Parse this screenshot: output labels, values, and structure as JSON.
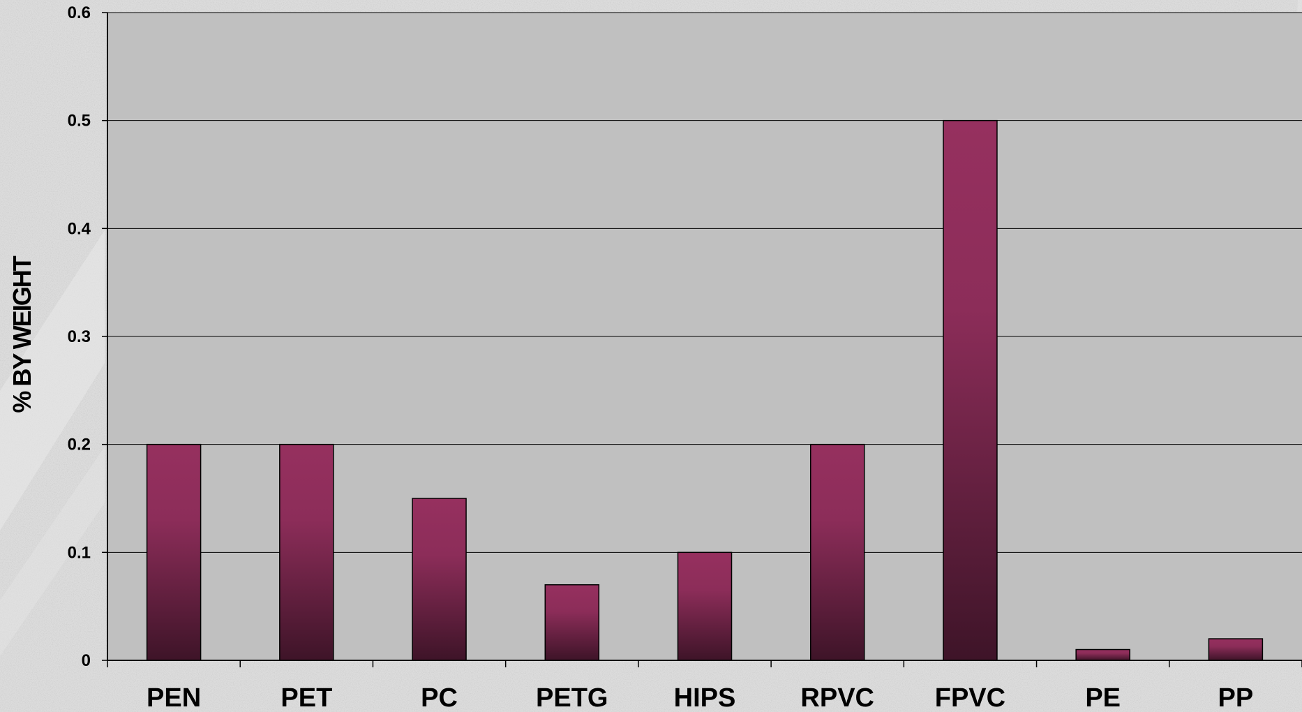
{
  "chart_data": {
    "type": "bar",
    "categories": [
      "PEN",
      "PET",
      "PC",
      "PETG",
      "HIPS",
      "RPVC",
      "FPVC",
      "PE",
      "PP"
    ],
    "values": [
      0.2,
      0.2,
      0.15,
      0.07,
      0.1,
      0.2,
      0.5,
      0.01,
      0.02
    ],
    "ylabel": "% BY WEIGHT",
    "xlabel": "",
    "ylim": [
      0,
      0.6
    ],
    "yticks": [
      "0",
      "0.1",
      "0.2",
      "0.3",
      "0.4",
      "0.5",
      "0.6"
    ],
    "grid": true,
    "legend": "none",
    "colors": {
      "bar_top": "#96305f",
      "bar_bottom": "#3e1428",
      "plot_background": "#c0c0c0",
      "gridline": "#000000"
    }
  }
}
